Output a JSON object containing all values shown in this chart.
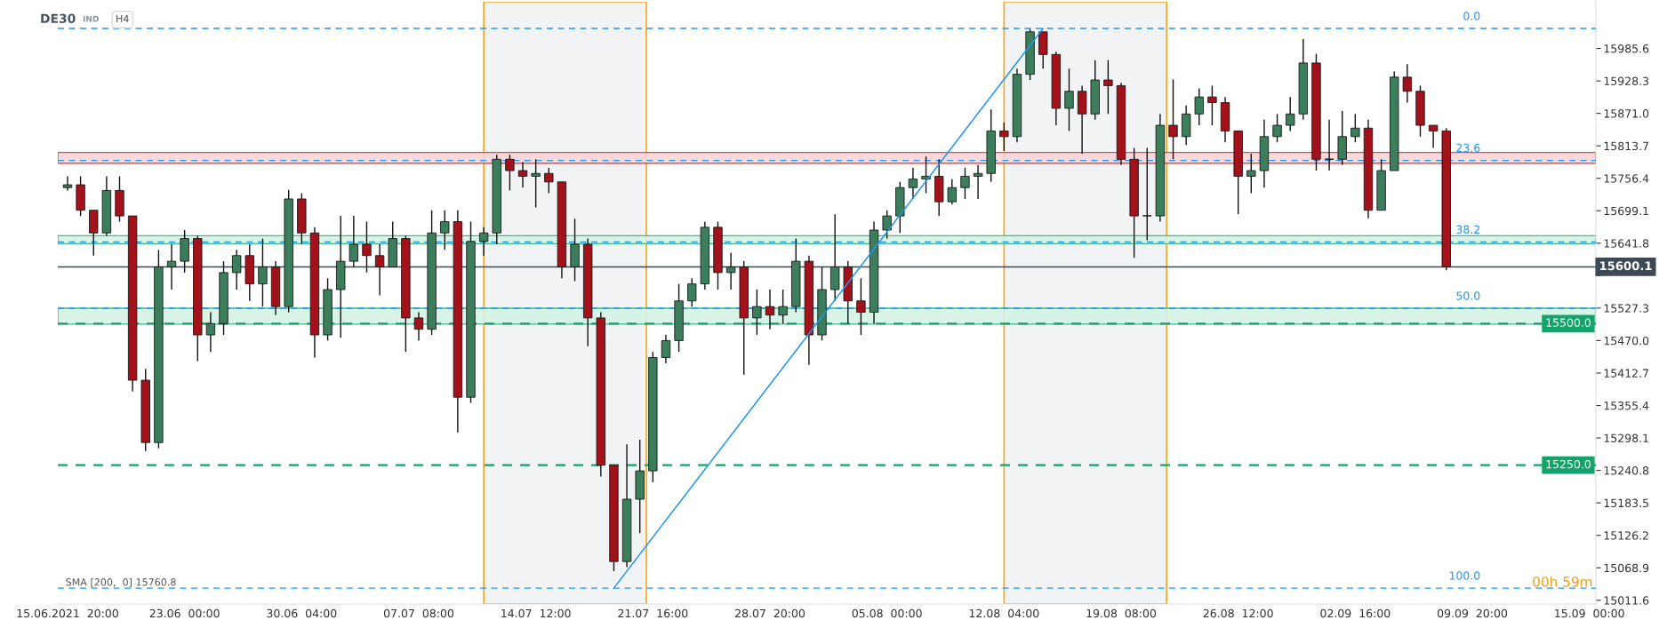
{
  "chart_data": {
    "type": "candlestick",
    "title": "DE30",
    "subtitle": "IND",
    "annotations": [
      "H4",
      "SMA [200,  0] 15760.8",
      "00h 59m",
      {
        "text": "0.0",
        "y": 16021
      },
      {
        "text": "23.6",
        "y": 15788
      },
      {
        "text": "38.2",
        "y": 15644
      },
      {
        "text": "50.0",
        "y": 15527
      },
      {
        "text": "100.0",
        "y": 15033
      }
    ],
    "categories": [
      "15.06.2021  20:00",
      null,
      null,
      null,
      null,
      null,
      null,
      null,
      null,
      "23.06  00:00",
      null,
      null,
      null,
      null,
      null,
      null,
      null,
      null,
      "30.06  04:00",
      null,
      null,
      null,
      null,
      null,
      null,
      null,
      null,
      "07.07  08:00",
      null,
      null,
      null,
      null,
      null,
      null,
      null,
      null,
      "14.07  12:00",
      null,
      null,
      null,
      null,
      null,
      null,
      null,
      null,
      "21.07  16:00",
      null,
      null,
      null,
      null,
      null,
      null,
      null,
      null,
      "28.07  20:00",
      null,
      null,
      null,
      null,
      null,
      null,
      null,
      null,
      "05.08  00:00",
      null,
      null,
      null,
      null,
      null,
      null,
      null,
      null,
      "12.08  04:00",
      null,
      null,
      null,
      null,
      null,
      null,
      null,
      null,
      "19.08  08:00",
      null,
      null,
      null,
      null,
      null,
      null,
      null,
      null,
      "26.08  12:00",
      null,
      null,
      null,
      null,
      null,
      null,
      null,
      null,
      "02.09  16:00",
      null,
      null,
      null,
      null,
      null,
      null,
      null,
      null,
      "09.09  20:00",
      null,
      null,
      null,
      null,
      null,
      null,
      null,
      null,
      "15.09  00:00"
    ],
    "ohlc": [
      [
        15740,
        15760,
        15735,
        15745
      ],
      [
        15745,
        15760,
        15690,
        15700
      ],
      [
        15700,
        15700,
        15620,
        15660
      ],
      [
        15660,
        15760,
        15655,
        15735
      ],
      [
        15735,
        15760,
        15680,
        15690
      ],
      [
        15690,
        15690,
        15380,
        15400
      ],
      [
        15400,
        15420,
        15275,
        15290
      ],
      [
        15290,
        15630,
        15280,
        15600
      ],
      [
        15600,
        15640,
        15560,
        15610
      ],
      [
        15610,
        15665,
        15590,
        15650
      ],
      [
        15650,
        15655,
        15434,
        15480
      ],
      [
        15480,
        15520,
        15450,
        15500
      ],
      [
        15500,
        15610,
        15480,
        15590
      ],
      [
        15590,
        15630,
        15560,
        15620
      ],
      [
        15620,
        15640,
        15540,
        15570
      ],
      [
        15570,
        15650,
        15530,
        15600
      ],
      [
        15600,
        15610,
        15515,
        15530
      ],
      [
        15530,
        15736,
        15520,
        15720
      ],
      [
        15720,
        15730,
        15640,
        15660
      ],
      [
        15660,
        15670,
        15440,
        15480
      ],
      [
        15480,
        15580,
        15470,
        15560
      ],
      [
        15560,
        15690,
        15475,
        15610
      ],
      [
        15610,
        15690,
        15600,
        15640
      ],
      [
        15640,
        15680,
        15590,
        15620
      ],
      [
        15620,
        15640,
        15550,
        15600
      ],
      [
        15600,
        15680,
        15600,
        15650
      ],
      [
        15650,
        15655,
        15450,
        15510
      ],
      [
        15510,
        15520,
        15470,
        15490
      ],
      [
        15490,
        15700,
        15480,
        15660
      ],
      [
        15660,
        15700,
        15630,
        15680
      ],
      [
        15680,
        15700,
        15308,
        15370
      ],
      [
        15370,
        15680,
        15360,
        15645
      ],
      [
        15645,
        15670,
        15620,
        15660
      ],
      [
        15660,
        15798,
        15640,
        15790
      ],
      [
        15790,
        15798,
        15735,
        15770
      ],
      [
        15770,
        15785,
        15740,
        15760
      ],
      [
        15760,
        15790,
        15705,
        15765
      ],
      [
        15765,
        15775,
        15730,
        15750
      ],
      [
        15750,
        15750,
        15580,
        15600
      ],
      [
        15600,
        15685,
        15575,
        15640
      ],
      [
        15640,
        15650,
        15460,
        15510
      ],
      [
        15510,
        15520,
        15230,
        15250
      ],
      [
        15250,
        15250,
        15063,
        15080
      ],
      [
        15080,
        15287,
        15070,
        15190
      ],
      [
        15190,
        15295,
        15130,
        15240
      ],
      [
        15240,
        15450,
        15220,
        15440
      ],
      [
        15440,
        15480,
        15430,
        15470
      ],
      [
        15470,
        15570,
        15450,
        15540
      ],
      [
        15540,
        15580,
        15530,
        15570
      ],
      [
        15570,
        15680,
        15560,
        15670
      ],
      [
        15670,
        15680,
        15560,
        15590
      ],
      [
        15590,
        15625,
        15560,
        15600
      ],
      [
        15600,
        15610,
        15410,
        15510
      ],
      [
        15510,
        15560,
        15480,
        15530
      ],
      [
        15530,
        15560,
        15490,
        15515
      ],
      [
        15515,
        15560,
        15500,
        15530
      ],
      [
        15530,
        15650,
        15520,
        15610
      ],
      [
        15610,
        15620,
        15427,
        15480
      ],
      [
        15480,
        15600,
        15470,
        15560
      ],
      [
        15560,
        15693,
        15540,
        15600
      ],
      [
        15600,
        15610,
        15500,
        15540
      ],
      [
        15540,
        15580,
        15480,
        15520
      ],
      [
        15520,
        15680,
        15500,
        15665
      ],
      [
        15665,
        15700,
        15650,
        15690
      ],
      [
        15690,
        15750,
        15660,
        15740
      ],
      [
        15740,
        15775,
        15720,
        15755
      ],
      [
        15755,
        15795,
        15730,
        15760
      ],
      [
        15760,
        15790,
        15690,
        15715
      ],
      [
        15715,
        15755,
        15710,
        15740
      ],
      [
        15740,
        15775,
        15720,
        15760
      ],
      [
        15760,
        15780,
        15720,
        15765
      ],
      [
        15765,
        15878,
        15750,
        15840
      ],
      [
        15840,
        15855,
        15805,
        15830
      ],
      [
        15830,
        15950,
        15820,
        15940
      ],
      [
        15940,
        16020,
        15930,
        16015
      ],
      [
        16015,
        16015,
        15950,
        15975
      ],
      [
        15975,
        15980,
        15850,
        15880
      ],
      [
        15880,
        15950,
        15840,
        15910
      ],
      [
        15910,
        15920,
        15800,
        15870
      ],
      [
        15870,
        15965,
        15860,
        15930
      ],
      [
        15930,
        15965,
        15870,
        15920
      ],
      [
        15920,
        15925,
        15780,
        15790
      ],
      [
        15790,
        15810,
        15616,
        15690
      ],
      [
        15690,
        15810,
        15647,
        15690
      ],
      [
        15690,
        15870,
        15680,
        15850
      ],
      [
        15850,
        15931,
        15790,
        15830
      ],
      [
        15830,
        15885,
        15815,
        15870
      ],
      [
        15870,
        15915,
        15850,
        15900
      ],
      [
        15900,
        15920,
        15850,
        15890
      ],
      [
        15890,
        15900,
        15820,
        15840
      ],
      [
        15840,
        15840,
        15693,
        15760
      ],
      [
        15760,
        15800,
        15730,
        15770
      ],
      [
        15770,
        15860,
        15740,
        15830
      ],
      [
        15830,
        15870,
        15820,
        15850
      ],
      [
        15850,
        15900,
        15840,
        15870
      ],
      [
        15870,
        16002,
        15860,
        15960
      ],
      [
        15960,
        15976,
        15770,
        15790
      ],
      [
        15790,
        15860,
        15770,
        15790
      ],
      [
        15790,
        15875,
        15780,
        15830
      ],
      [
        15830,
        15870,
        15820,
        15845
      ],
      [
        15845,
        15860,
        15686,
        15700
      ],
      [
        15700,
        15790,
        15700,
        15770
      ],
      [
        15770,
        15945,
        15770,
        15935
      ],
      [
        15935,
        15958,
        15890,
        15910
      ],
      [
        15910,
        15920,
        15830,
        15850
      ],
      [
        15850,
        15850,
        15810,
        15840
      ],
      [
        15840,
        15845,
        15594,
        15600.1
      ],
      null,
      null,
      null,
      null,
      null,
      null,
      null,
      null,
      null,
      null,
      null
    ],
    "series": [
      {
        "type": "line",
        "values": [
          null,
          null,
          null,
          null,
          null,
          null,
          null,
          null,
          null,
          null,
          null,
          null,
          null,
          null,
          null,
          null,
          null,
          null,
          null,
          null,
          null,
          null,
          null,
          null,
          null,
          null,
          null,
          null,
          null,
          null,
          null,
          null,
          null,
          null,
          null,
          null,
          null,
          null,
          null,
          null,
          null,
          null,
          15033,
          null,
          null,
          null,
          null,
          null,
          null,
          null,
          null,
          null,
          null,
          null,
          null,
          null,
          null,
          null,
          null,
          null,
          null,
          null,
          null,
          null,
          null,
          null,
          null,
          null,
          null,
          null,
          null,
          null,
          null,
          null,
          null,
          16021,
          null,
          null,
          null,
          null,
          null,
          null,
          null,
          null,
          null,
          null,
          null,
          null,
          null,
          null,
          null,
          null,
          null,
          null,
          null,
          null,
          null,
          null,
          null,
          null,
          null,
          null,
          null,
          null,
          null,
          null,
          null,
          null,
          null,
          null,
          null,
          null,
          null,
          null,
          null,
          null,
          null,
          null
        ],
        "color": "#2196f3"
      }
    ],
    "ylim": [
      15005,
      16068
    ],
    "yticks": [
      15011.6,
      15068.9,
      15126.2,
      15183.5,
      15240.8,
      15298.1,
      15355.4,
      15412.7,
      {
        "value": 15470,
        "label": "15470.0"
      },
      15527.3,
      {
        "value": 15584.5,
        "label": null
      },
      15641.8,
      15699.1,
      15756.4,
      15813.7,
      {
        "value": 15871,
        "label": "15871.0"
      },
      15928.3,
      15985.6
    ],
    "ref_lines": [
      {
        "axis": "y",
        "value": 15500.0,
        "label": "15500.0",
        "color": "#13a36b",
        "line_style": "dashed"
      },
      {
        "axis": "y",
        "value": 15250.0,
        "label": "15250.0",
        "color": "#13a36b",
        "line_style": "dashed"
      },
      {
        "axis": "y",
        "value": 15600.1,
        "label": "15600.1",
        "color": "#3d4a55",
        "line_style": "solid"
      },
      {
        "axis": "y",
        "value": 16021,
        "color": "#2196f3",
        "line_style": "dashed"
      },
      {
        "axis": "y",
        "value": 15788,
        "color": "#2196f3",
        "line_style": "dashed"
      },
      {
        "axis": "y",
        "value": 15644,
        "color": "#2196f3",
        "line_style": "dashed"
      },
      {
        "axis": "y",
        "value": 15527,
        "color": "#2196f3",
        "line_style": "dashed"
      },
      {
        "axis": "y",
        "value": 15033,
        "color": "#2196f3",
        "line_style": "dashed"
      }
    ],
    "bands": [
      {
        "axis": "y",
        "from": 15783,
        "to": 15802,
        "color": "#f8d7da"
      },
      {
        "axis": "y",
        "from": 15641,
        "to": 15655,
        "color": "#d4f3e6"
      },
      {
        "axis": "y",
        "from": 15499,
        "to": 15527,
        "color": "#d4f3e6"
      }
    ],
    "grid": false
  }
}
